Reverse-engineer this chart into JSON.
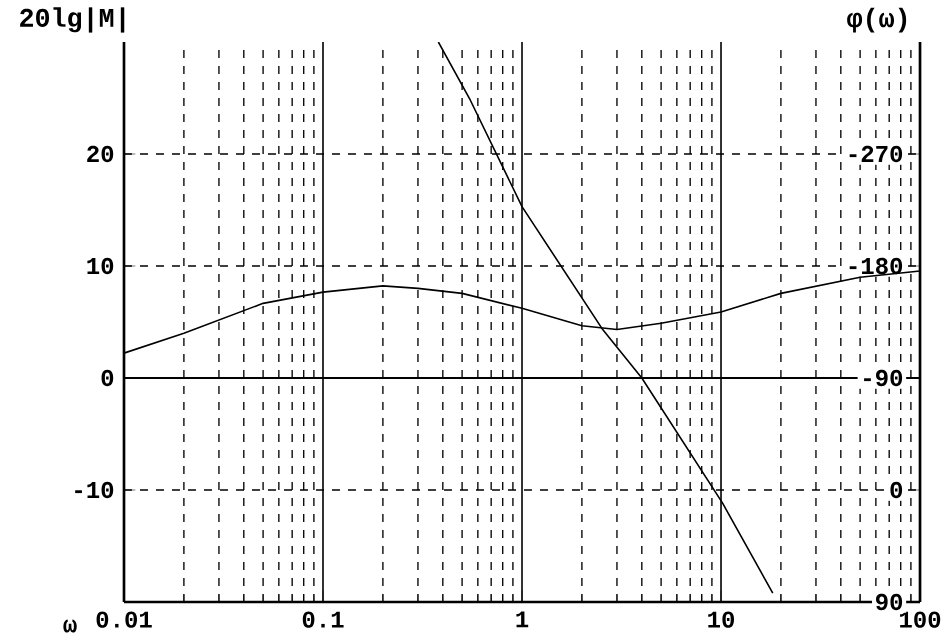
{
  "chart_data": {
    "type": "line",
    "xlabel": "ω",
    "ylabel": "20lg|M|",
    "y2label": "φ(ω)",
    "log": "x",
    "grid": true,
    "marker": "none",
    "line_style": "solid",
    "x": [
      0.38,
      0.55,
      1,
      2.55,
      4,
      10.2,
      18.2
    ],
    "series": [
      {
        "color": "#000000",
        "values": [
          30,
          24.8,
          15.3,
          4.3,
          0,
          -11.2,
          -19.2
        ]
      },
      {
        "color": "#000000",
        "axis": "y2",
        "x": [
          0.01,
          0.02,
          0.05,
          0.1,
          0.2,
          0.3,
          0.5,
          1,
          2,
          3,
          5,
          10,
          20,
          50,
          100
        ],
        "values": [
          -110,
          -126,
          -150,
          -159,
          -164,
          -162,
          -158,
          -146,
          -132,
          -129,
          -134,
          -143,
          -158,
          -171,
          -176
        ]
      }
    ],
    "xlim": [
      0.01,
      100
    ],
    "xticks": [
      0.01,
      0.1,
      1,
      10,
      100
    ],
    "ylim": [
      -20,
      30
    ],
    "yticks": [
      -10,
      0,
      10,
      20
    ],
    "y2lim": [
      90,
      -360
    ],
    "y2ticks": [
      -270,
      -180,
      -90,
      0,
      90
    ],
    "ref_lines": [
      {
        "axis": "y",
        "value": 0
      }
    ]
  }
}
